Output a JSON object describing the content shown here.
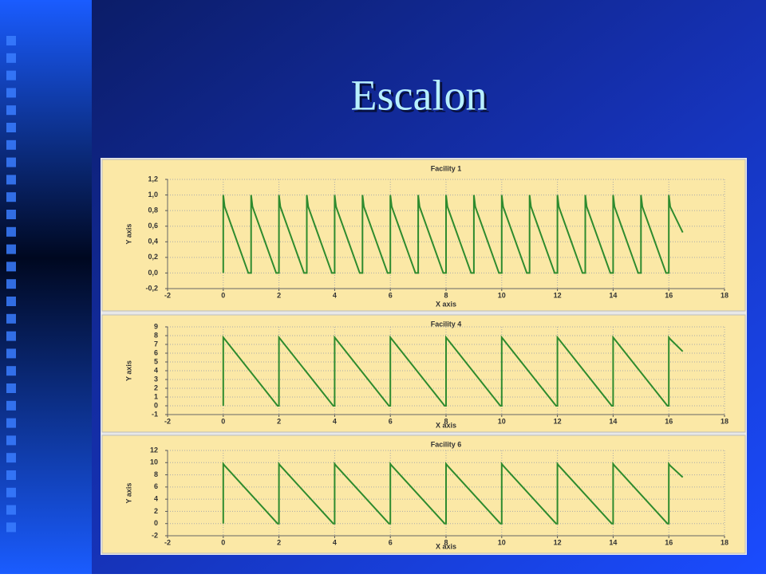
{
  "title": "Escalon",
  "chart_data": [
    {
      "type": "line",
      "title": "Facility 1",
      "xlabel": "X axis",
      "ylabel": "Y axis",
      "color": "#2e8b2e",
      "grid": true,
      "x": [
        0,
        0,
        0.05,
        0.9,
        1,
        1,
        1.05,
        1.9,
        2,
        2,
        2.05,
        2.9,
        3,
        3,
        3.05,
        3.9,
        4,
        4,
        4.05,
        4.9,
        5,
        5,
        5.05,
        5.9,
        6,
        6,
        6.05,
        6.9,
        7,
        7,
        7.05,
        7.9,
        8,
        8,
        8.05,
        8.9,
        9,
        9,
        9.05,
        9.9,
        10,
        10,
        10.05,
        10.9,
        11,
        11,
        11.05,
        11.9,
        12,
        12,
        12.05,
        12.9,
        13,
        13,
        13.05,
        13.9,
        14,
        14,
        14.05,
        14.9,
        15,
        15,
        15.05,
        15.9,
        16,
        16,
        16.05,
        16.5
      ],
      "values": [
        0,
        1,
        0.85,
        0,
        0,
        1,
        0.85,
        0,
        0,
        1,
        0.85,
        0,
        0,
        1,
        0.85,
        0,
        0,
        1,
        0.85,
        0,
        0,
        1,
        0.85,
        0,
        0,
        1,
        0.85,
        0,
        0,
        1,
        0.85,
        0,
        0,
        1,
        0.85,
        0,
        0,
        1,
        0.85,
        0,
        0,
        1,
        0.85,
        0,
        0,
        1,
        0.85,
        0,
        0,
        1,
        0.85,
        0,
        0,
        1,
        0.85,
        0,
        0,
        1,
        0.85,
        0,
        0,
        1,
        0.85,
        0,
        0,
        1,
        0.85,
        0.52
      ],
      "xlim": [
        -2,
        18
      ],
      "xticks": [
        -2,
        0,
        2,
        4,
        6,
        8,
        10,
        12,
        14,
        16,
        18
      ],
      "ylim": [
        -0.2,
        1.2
      ],
      "yticks": [
        {
          "value": -0.2,
          "label": "-0,2"
        },
        {
          "value": 0,
          "label": "0,0"
        },
        {
          "value": 0.2,
          "label": "0,2"
        },
        {
          "value": 0.4,
          "label": "0,4"
        },
        {
          "value": 0.6,
          "label": "0,6"
        },
        {
          "value": 0.8,
          "label": "0,8"
        },
        {
          "value": 1.0,
          "label": "1,0"
        },
        {
          "value": 1.2,
          "label": "1,2"
        }
      ]
    },
    {
      "type": "line",
      "title": "Facility 4",
      "xlabel": "X axis",
      "ylabel": "Y axis",
      "color": "#2e8b2e",
      "grid": true,
      "x": [
        0,
        0,
        0.05,
        1.95,
        2,
        2,
        2.05,
        3.95,
        4,
        4,
        4.05,
        5.95,
        6,
        6,
        6.05,
        7.95,
        8,
        8,
        8.05,
        9.95,
        10,
        10,
        10.05,
        11.95,
        12,
        12,
        12.05,
        13.95,
        14,
        14,
        14.05,
        15.95,
        16,
        16,
        16.05,
        16.5
      ],
      "values": [
        0,
        7.8,
        7.6,
        0,
        0,
        7.8,
        7.6,
        0,
        0,
        7.8,
        7.6,
        0,
        0,
        7.8,
        7.6,
        0,
        0,
        7.8,
        7.6,
        0,
        0,
        7.8,
        7.6,
        0,
        0,
        7.8,
        7.6,
        0,
        0,
        7.8,
        7.6,
        0,
        0,
        7.8,
        7.6,
        6.2
      ],
      "xlim": [
        -2,
        18
      ],
      "xticks": [
        -2,
        0,
        2,
        4,
        6,
        8,
        10,
        12,
        14,
        16,
        18
      ],
      "ylim": [
        -1,
        9
      ],
      "yticks": [
        -1,
        0,
        1,
        2,
        3,
        4,
        5,
        6,
        7,
        8,
        9
      ]
    },
    {
      "type": "line",
      "title": "Facility 6",
      "xlabel": "X axis",
      "ylabel": "Y axis",
      "color": "#2e8b2e",
      "grid": true,
      "x": [
        0,
        0,
        0.05,
        1.95,
        2,
        2,
        2.05,
        3.95,
        4,
        4,
        4.05,
        5.95,
        6,
        6,
        6.05,
        7.95,
        8,
        8,
        8.05,
        9.95,
        10,
        10,
        10.05,
        11.95,
        12,
        12,
        12.05,
        13.95,
        14,
        14,
        14.05,
        15.95,
        16,
        16,
        16.05,
        16.5
      ],
      "values": [
        0,
        9.8,
        9.5,
        0,
        0,
        9.8,
        9.5,
        0,
        0,
        9.8,
        9.5,
        0,
        0,
        9.8,
        9.5,
        0,
        0,
        9.8,
        9.5,
        0,
        0,
        9.8,
        9.5,
        0,
        0,
        9.8,
        9.5,
        0,
        0,
        9.8,
        9.5,
        0,
        0,
        9.8,
        9.5,
        7.6
      ],
      "xlim": [
        -2,
        18
      ],
      "xticks": [
        -2,
        0,
        2,
        4,
        6,
        8,
        10,
        12,
        14,
        16,
        18
      ],
      "ylim": [
        -2,
        12
      ],
      "yticks": [
        -2,
        0,
        2,
        4,
        6,
        8,
        10,
        12
      ]
    }
  ]
}
